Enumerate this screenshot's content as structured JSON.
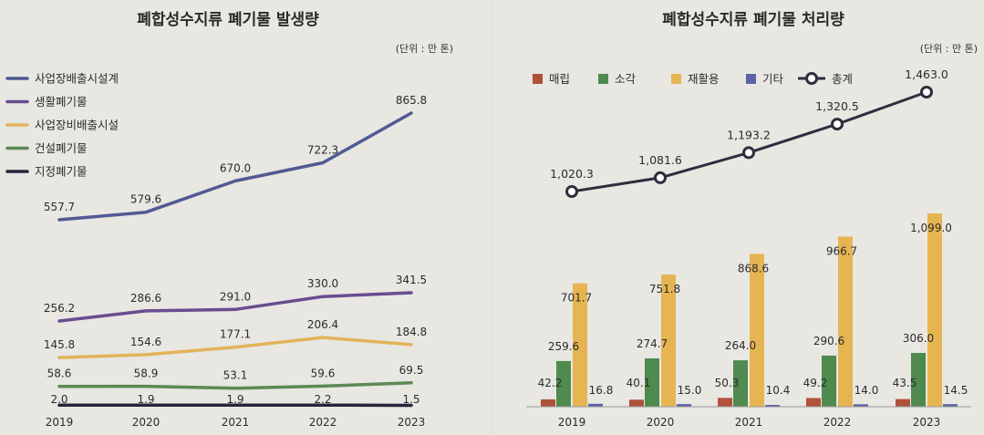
{
  "chart_data": [
    {
      "type": "line",
      "title": "폐합성수지류 폐기물 발생량",
      "unit_note": "(단위 : 만 톤)",
      "categories": [
        "2019",
        "2020",
        "2021",
        "2022",
        "2023"
      ],
      "series": [
        {
          "name": "사업장배출시설계",
          "color": "#525a94",
          "values": [
            557.7,
            579.6,
            670.0,
            722.3,
            865.8
          ],
          "labels": [
            "557.7",
            "579.6",
            "670.0",
            "722.3",
            "865.8"
          ]
        },
        {
          "name": "생활폐기물",
          "color": "#6a4d8f",
          "values": [
            256.2,
            286.6,
            291.0,
            330.0,
            341.5
          ],
          "labels": [
            "256.2",
            "286.6",
            "291.0",
            "330.0",
            "341.5"
          ]
        },
        {
          "name": "사업장비배출시설",
          "color": "#e3b45a",
          "values": [
            145.8,
            154.6,
            177.1,
            206.4,
            184.8
          ],
          "labels": [
            "145.8",
            "154.6",
            "177.1",
            "206.4",
            "184.8"
          ]
        },
        {
          "name": "건설폐기물",
          "color": "#5c8a55",
          "values": [
            58.6,
            58.9,
            53.1,
            59.6,
            69.5
          ],
          "labels": [
            "58.6",
            "58.9",
            "53.1",
            "59.6",
            "69.5"
          ]
        },
        {
          "name": "지정폐기물",
          "color": "#25253a",
          "values": [
            2.0,
            1.9,
            1.9,
            2.2,
            1.5
          ],
          "labels": [
            "2.0",
            "1.9",
            "1.9",
            "2.2",
            "1.5"
          ]
        }
      ]
    },
    {
      "type": "bar",
      "title": "폐합성수지류 폐기물 처리량",
      "unit_note": "(단위 : 만 톤)",
      "categories": [
        "2019",
        "2020",
        "2021",
        "2022",
        "2023"
      ],
      "series": [
        {
          "name": "매립",
          "color": "#b0513a",
          "values": [
            42.2,
            40.1,
            50.3,
            49.2,
            43.5
          ],
          "labels": [
            "42.2",
            "40.1",
            "50.3",
            "49.2",
            "43.5"
          ]
        },
        {
          "name": "소각",
          "color": "#4f8a4e",
          "values": [
            259.6,
            274.7,
            264.0,
            290.6,
            306.0
          ],
          "labels": [
            "259.6",
            "274.7",
            "264.0",
            "290.6",
            "306.0"
          ]
        },
        {
          "name": "재활용",
          "color": "#e6b552",
          "values": [
            701.7,
            751.8,
            868.6,
            966.7,
            1099.0
          ],
          "labels": [
            "701.7",
            "751.8",
            "868.6",
            "966.7",
            "1,099.0"
          ]
        },
        {
          "name": "기타",
          "color": "#5a63a6",
          "values": [
            16.8,
            15.0,
            10.4,
            14.0,
            14.5
          ],
          "labels": [
            "16.8",
            "15.0",
            "10.4",
            "14.0",
            "14.5"
          ]
        }
      ],
      "total": {
        "name": "총계",
        "color": "#2e2e3e",
        "values": [
          1020.3,
          1081.6,
          1193.2,
          1320.5,
          1463.0
        ],
        "labels": [
          "1,020.3",
          "1,081.6",
          "1,193.2",
          "1,320.5",
          "1,463.0"
        ]
      }
    }
  ]
}
